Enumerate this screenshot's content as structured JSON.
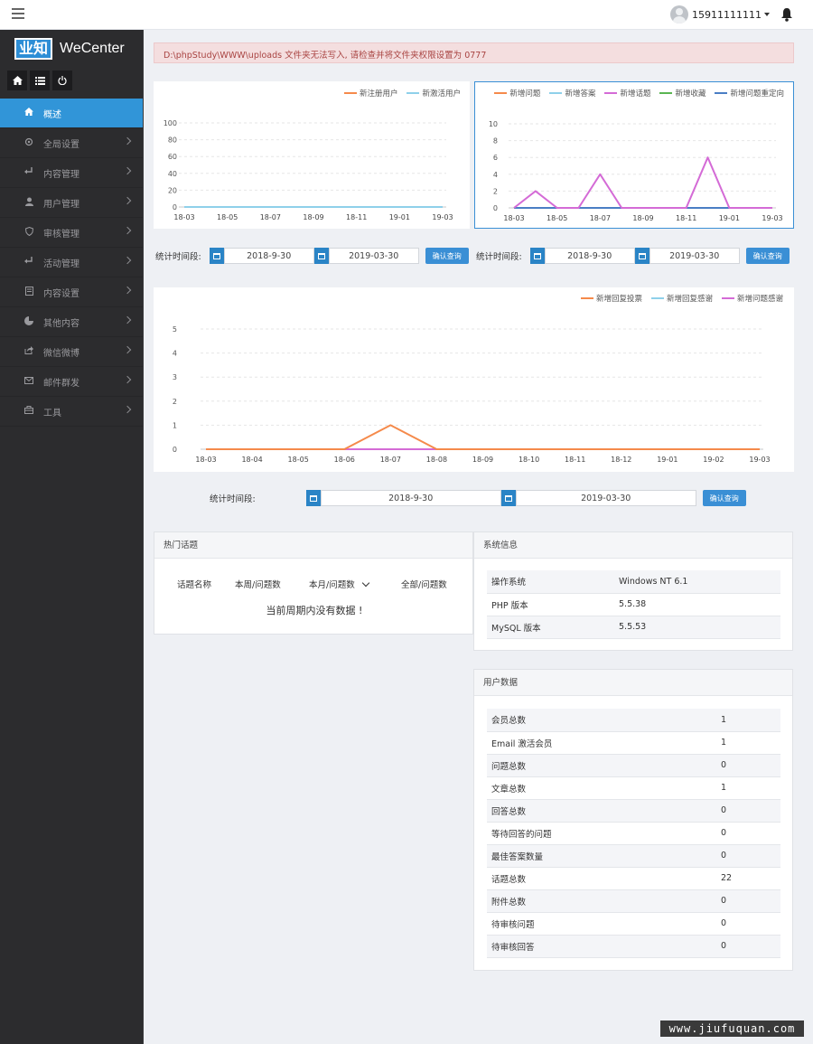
{
  "header": {
    "username": "15911111111"
  },
  "sidebar": {
    "logo_box": "业知",
    "logo_text": "WeCenter",
    "items": [
      {
        "label": "概述",
        "icon": "home-icon",
        "active": true
      },
      {
        "label": "全局设置",
        "icon": "gear-icon"
      },
      {
        "label": "内容管理",
        "icon": "return-icon"
      },
      {
        "label": "用户管理",
        "icon": "user-icon"
      },
      {
        "label": "审核管理",
        "icon": "shield-icon"
      },
      {
        "label": "活动管理",
        "icon": "return-icon"
      },
      {
        "label": "内容设置",
        "icon": "document-icon"
      },
      {
        "label": "其他内容",
        "icon": "pie-icon"
      },
      {
        "label": "微信微博",
        "icon": "share-icon"
      },
      {
        "label": "邮件群发",
        "icon": "mail-icon"
      },
      {
        "label": "工具",
        "icon": "toolbox-icon"
      }
    ]
  },
  "alert": {
    "text": "D:\\phpStudy\\WWW\\uploads 文件夹无法写入, 请检查并将文件夹权限设置为 0777"
  },
  "chart_data": [
    {
      "type": "line",
      "x": [
        "18-03",
        "18-04",
        "18-05",
        "18-06",
        "18-07",
        "18-08",
        "18-09",
        "18-10",
        "18-11",
        "18-12",
        "19-01",
        "19-02",
        "19-03"
      ],
      "x_tick_labels": [
        "18-03",
        "18-05",
        "18-07",
        "18-09",
        "18-11",
        "19-01",
        "19-03"
      ],
      "ylim": [
        0,
        100
      ],
      "y_ticks": [
        0,
        20,
        40,
        60,
        80,
        100
      ],
      "series": [
        {
          "name": "新注册用户",
          "color": "#f58a4b",
          "values": [
            0,
            0,
            0,
            0,
            0,
            0,
            0,
            0,
            0,
            0,
            0,
            0,
            0
          ]
        },
        {
          "name": "新激活用户",
          "color": "#8fd0ea",
          "values": [
            0,
            0,
            0,
            0,
            0,
            0,
            0,
            0,
            0,
            0,
            0,
            0,
            0
          ]
        }
      ]
    },
    {
      "type": "line",
      "x": [
        "18-03",
        "18-04",
        "18-05",
        "18-06",
        "18-07",
        "18-08",
        "18-09",
        "18-10",
        "18-11",
        "18-12",
        "19-01",
        "19-02",
        "19-03"
      ],
      "x_tick_labels": [
        "18-03",
        "18-05",
        "18-07",
        "18-09",
        "18-11",
        "19-01",
        "19-03"
      ],
      "ylim": [
        0,
        10
      ],
      "y_ticks": [
        0,
        2,
        4,
        6,
        8,
        10
      ],
      "series": [
        {
          "name": "新增问题",
          "color": "#f58a4b",
          "values": [
            0,
            0,
            0,
            0,
            0,
            0,
            0,
            0,
            0,
            0,
            0,
            0,
            0
          ]
        },
        {
          "name": "新增答案",
          "color": "#8fd0ea",
          "values": [
            0,
            0,
            0,
            0,
            0,
            0,
            0,
            0,
            0,
            0,
            0,
            0,
            0
          ]
        },
        {
          "name": "新增话题",
          "color": "#d46bd6",
          "values": [
            0,
            2,
            0,
            0,
            4,
            0,
            0,
            0,
            0,
            6,
            0,
            0,
            0
          ]
        },
        {
          "name": "新增收藏",
          "color": "#5ab552",
          "values": [
            0,
            0,
            0,
            0,
            0,
            0,
            0,
            0,
            0,
            0,
            0,
            0,
            0
          ]
        },
        {
          "name": "新增问题重定向",
          "color": "#4a7ec4",
          "values": [
            0,
            0,
            0,
            0,
            0,
            0,
            0,
            0,
            0,
            0,
            0,
            0,
            0
          ]
        }
      ]
    },
    {
      "type": "line",
      "x": [
        "18-03",
        "18-04",
        "18-05",
        "18-06",
        "18-07",
        "18-08",
        "18-09",
        "18-10",
        "18-11",
        "18-12",
        "19-01",
        "19-02",
        "19-03"
      ],
      "x_tick_labels": [
        "18-03",
        "18-04",
        "18-05",
        "18-06",
        "18-07",
        "18-08",
        "18-09",
        "18-10",
        "18-11",
        "18-12",
        "19-01",
        "19-02",
        "19-03"
      ],
      "ylim": [
        0,
        5
      ],
      "y_ticks": [
        0,
        1,
        2,
        3,
        4,
        5
      ],
      "series": [
        {
          "name": "新增回复投票",
          "color": "#f58a4b",
          "values": [
            0,
            0,
            0,
            0,
            1,
            0,
            0,
            0,
            0,
            0,
            0,
            0,
            0
          ]
        },
        {
          "name": "新增回复感谢",
          "color": "#8fd0ea",
          "values": [
            0,
            0,
            0,
            0,
            0,
            0,
            0,
            0,
            0,
            0,
            0,
            0,
            0
          ]
        },
        {
          "name": "新增问题感谢",
          "color": "#d46bd6",
          "values": [
            0,
            0,
            0,
            0,
            0,
            0,
            0,
            0,
            0,
            0,
            0,
            0,
            0
          ]
        }
      ]
    }
  ],
  "filters": {
    "label": "统计时间段:",
    "start": "2018-9-30",
    "end": "2019-03-30",
    "button": "确认查询"
  },
  "hot_topics": {
    "title": "热门话题",
    "columns": [
      "话题名称",
      "本周/问题数",
      "本月/问题数",
      "全部/问题数"
    ],
    "empty": "当前周期内没有数据 !"
  },
  "system_info": {
    "title": "系统信息",
    "rows": [
      {
        "k": "操作系统",
        "v": "Windows NT 6.1"
      },
      {
        "k": "PHP 版本",
        "v": "5.5.38"
      },
      {
        "k": "MySQL 版本",
        "v": "5.5.53"
      }
    ]
  },
  "user_data": {
    "title": "用户数据",
    "rows": [
      {
        "k": "会员总数",
        "v": "1"
      },
      {
        "k": "Email 激活会员",
        "v": "1"
      },
      {
        "k": "问题总数",
        "v": "0"
      },
      {
        "k": "文章总数",
        "v": "1"
      },
      {
        "k": "回答总数",
        "v": "0"
      },
      {
        "k": "等待回答的问题",
        "v": "0"
      },
      {
        "k": "最佳答案数量",
        "v": "0"
      },
      {
        "k": "话题总数",
        "v": "22"
      },
      {
        "k": "附件总数",
        "v": "0"
      },
      {
        "k": "待审核问题",
        "v": "0"
      },
      {
        "k": "待审核回答",
        "v": "0"
      }
    ]
  },
  "watermark": "www.jiufuquan.com"
}
